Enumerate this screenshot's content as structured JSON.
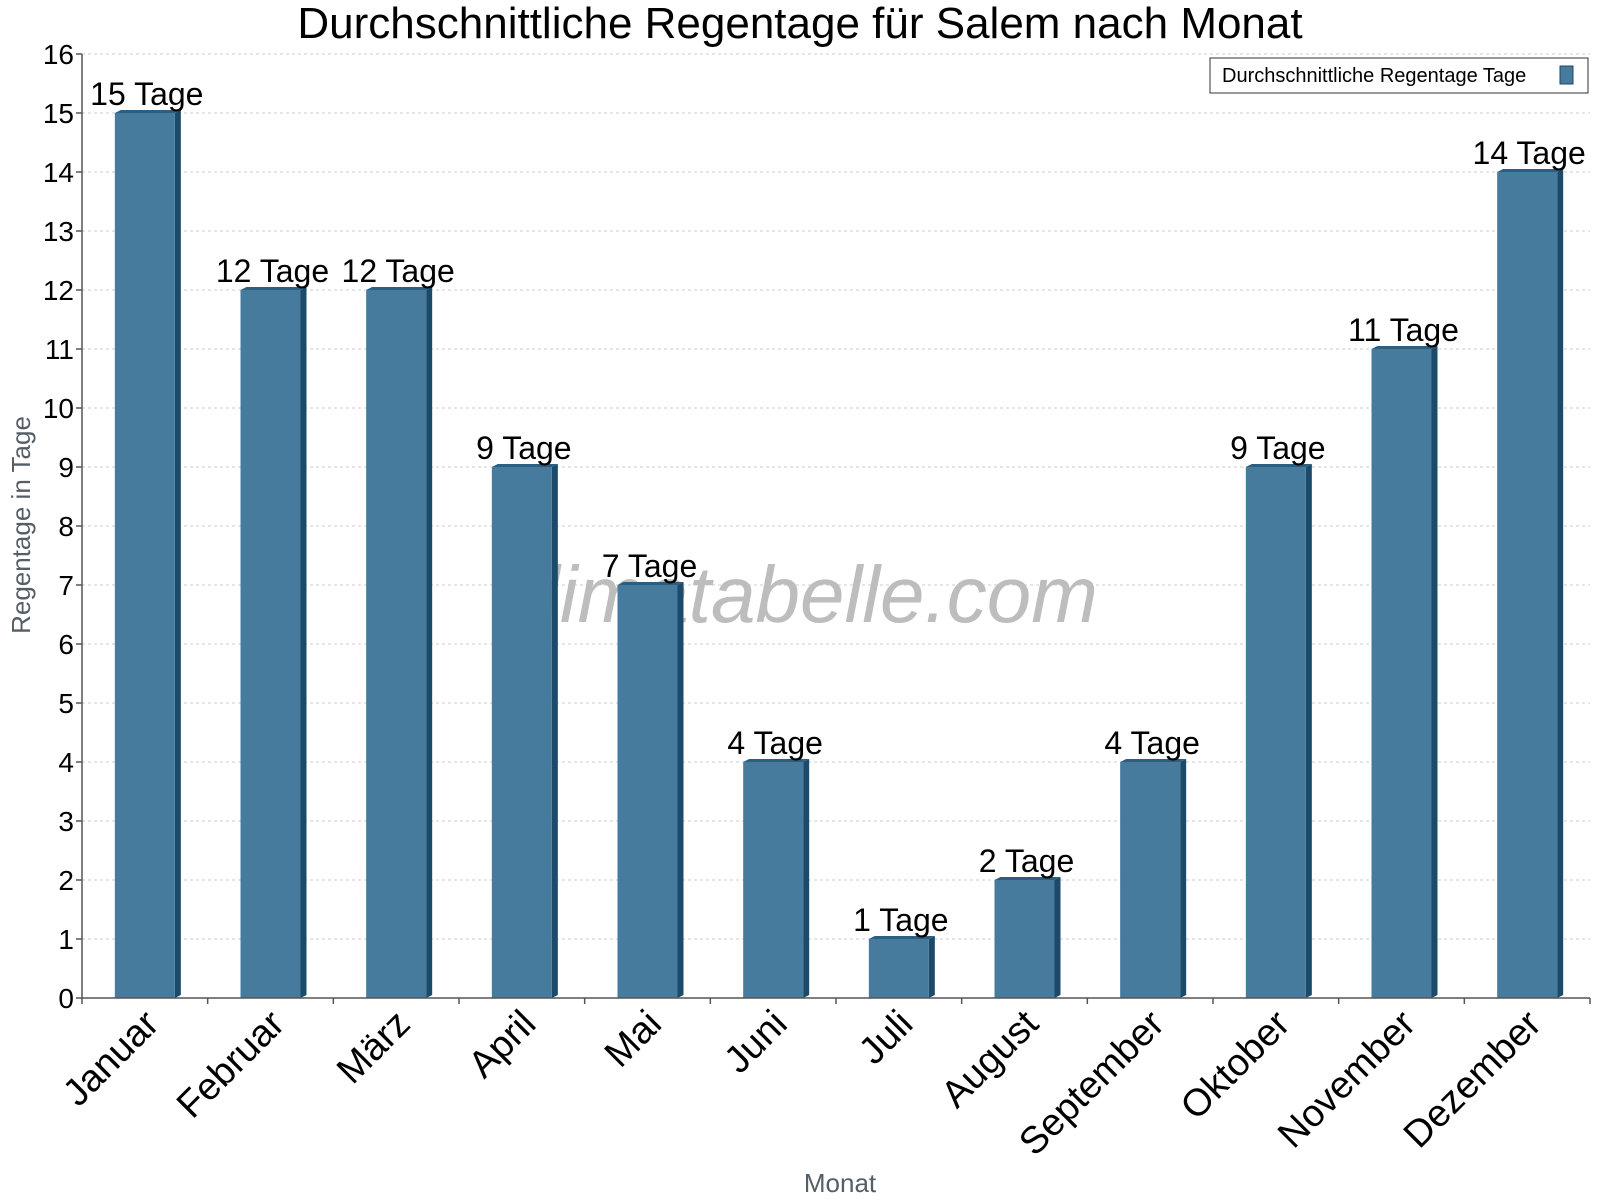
{
  "chart_data": {
    "type": "bar",
    "title": "Durchschnittliche Regentage für Salem nach Monat",
    "xlabel": "Monat",
    "ylabel": "Regentage in Tage",
    "ylim": [
      0,
      16
    ],
    "yticks": [
      "0",
      "1",
      "2",
      "3",
      "4",
      "5",
      "6",
      "7",
      "8",
      "9",
      "10",
      "11",
      "12",
      "13",
      "14",
      "15",
      "16"
    ],
    "grid": true,
    "legend_position": "top-right",
    "categories": [
      "Januar",
      "Februar",
      "März",
      "April",
      "Mai",
      "Juni",
      "Juli",
      "August",
      "September",
      "Oktober",
      "November",
      "Dezember"
    ],
    "series": [
      {
        "name": "Durchschnittliche Regentage Tage",
        "color": "#467b9d",
        "values": [
          15,
          12,
          12,
          9,
          7,
          4,
          1,
          2,
          4,
          9,
          11,
          14
        ],
        "labels": [
          "15 Tage",
          "12 Tage",
          "12 Tage",
          "9 Tage",
          "7 Tage",
          "4 Tage",
          "1 Tage",
          "2 Tage",
          "4 Tage",
          "9 Tage",
          "11 Tage",
          "14 Tage"
        ]
      }
    ],
    "watermark": "klimatabelle.com"
  }
}
